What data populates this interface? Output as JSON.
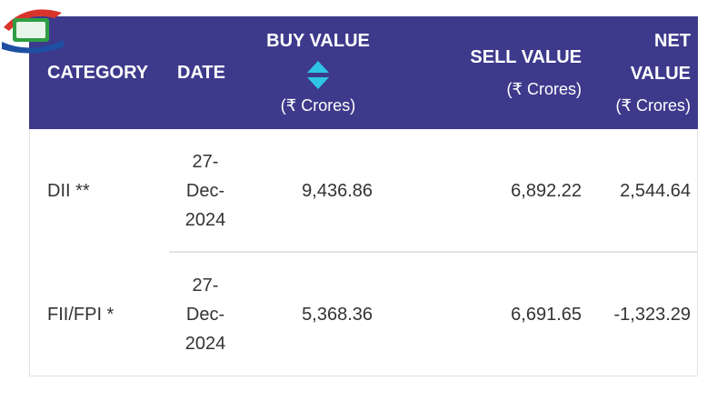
{
  "table": {
    "columns": [
      {
        "title": "CATEGORY"
      },
      {
        "title": "DATE"
      },
      {
        "title": "BUY VALUE",
        "unit": "(₹ Crores)"
      },
      {
        "title": "SELL VALUE",
        "unit": "(₹ Crores)"
      },
      {
        "title": "NET VALUE",
        "unit": "(₹ Crores)"
      }
    ],
    "rows": [
      [
        "DII **",
        "27-Dec-2024",
        "9,436.86",
        "6,892.22",
        "2,544.64"
      ],
      [
        "FII/FPI *",
        "27-Dec-2024",
        "5,368.36",
        "6,691.65",
        "-1,323.29"
      ]
    ]
  }
}
